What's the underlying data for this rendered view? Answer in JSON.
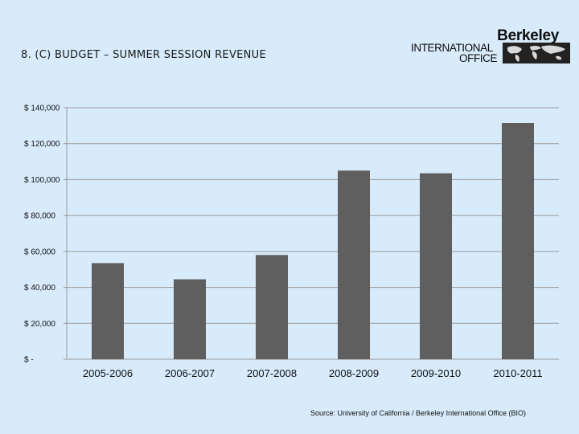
{
  "slide": {
    "title": "8. (C) BUDGET – SUMMER SESSION REVENUE",
    "source": "Source:  University of California / Berkeley International Office (BIO)"
  },
  "logo": {
    "brand": "Berkeley",
    "line1": "INTERNATIONAL",
    "line2": "OFFICE",
    "icon": "world-map-icon"
  },
  "colors": {
    "background": "#d7ebfb",
    "bar": "#5f5f5f",
    "gridline": "#9a9a9a"
  },
  "chart_data": {
    "type": "bar",
    "title": "",
    "xlabel": "",
    "ylabel": "",
    "categories": [
      "2005-2006",
      "2006-2007",
      "2007-2008",
      "2008-2009",
      "2009-2010",
      "2010-2011"
    ],
    "values": [
      53500,
      44500,
      58000,
      105000,
      103500,
      131500
    ],
    "ylim": [
      0,
      140000
    ],
    "yticks": [
      0,
      20000,
      40000,
      60000,
      80000,
      100000,
      120000,
      140000
    ],
    "ytick_labels": [
      "$ -",
      "$ 20,000",
      "$ 40,000",
      "$ 60,000",
      "$ 80,000",
      "$ 100,000",
      "$ 120,000",
      "$ 140,000"
    ],
    "grid": true,
    "legend": "none"
  }
}
